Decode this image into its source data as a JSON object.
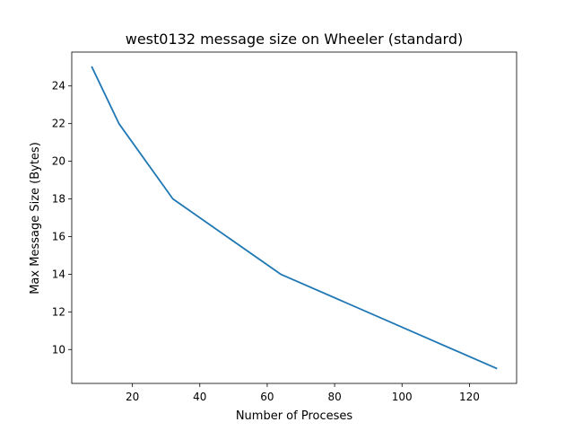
{
  "chart_data": {
    "type": "line",
    "title": "west0132 message size on Wheeler (standard)",
    "xlabel": "Number of Proceses",
    "ylabel": "Max Message Size (Bytes)",
    "x": [
      8,
      16,
      32,
      64,
      128
    ],
    "series": [
      {
        "values": [
          25,
          22,
          18,
          14,
          9
        ],
        "color": "#1f77b4"
      }
    ],
    "xlim": [
      2,
      134
    ],
    "ylim": [
      8.2,
      25.8
    ],
    "xticks": [
      20,
      40,
      60,
      80,
      100,
      120
    ],
    "yticks": [
      10,
      12,
      14,
      16,
      18,
      20,
      22,
      24
    ],
    "grid": false,
    "legend": "none"
  }
}
